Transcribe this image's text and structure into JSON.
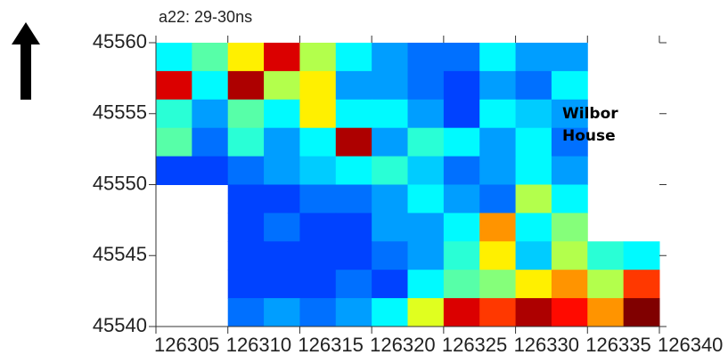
{
  "chart_data": {
    "type": "heatmap",
    "title": "a22: 29-30ns",
    "annotation": [
      "Wilbor",
      "House"
    ],
    "xlim": [
      126305,
      126340
    ],
    "ylim": [
      45540,
      45560
    ],
    "xticks": [
      126305,
      126310,
      126315,
      126320,
      126325,
      126330,
      126335,
      126340
    ],
    "yticks": [
      45540,
      45545,
      45550,
      45555,
      45560
    ],
    "xbins": [
      126305,
      126307.5,
      126310,
      126312.5,
      126315,
      126317.5,
      126320,
      126322.5,
      126325,
      126327.5,
      126330,
      126332.5,
      126335,
      126337.5,
      126340
    ],
    "ybins": [
      45560,
      45558,
      45556,
      45554,
      45552,
      45550,
      45548,
      45546,
      45544,
      45542,
      45540
    ],
    "values": [
      [
        0.3,
        0.4,
        0.6,
        0.9,
        0.5,
        0.3,
        0.2,
        0.15,
        0.15,
        0.3,
        0.2,
        0.2,
        null,
        null
      ],
      [
        0.9,
        0.3,
        0.95,
        0.5,
        0.6,
        0.2,
        0.2,
        0.15,
        0.1,
        0.2,
        0.15,
        0.3,
        null,
        null
      ],
      [
        0.35,
        0.2,
        0.4,
        0.3,
        0.6,
        0.3,
        0.3,
        0.2,
        0.1,
        0.3,
        0.25,
        0.2,
        null,
        null
      ],
      [
        0.4,
        0.15,
        0.35,
        0.2,
        0.3,
        0.95,
        0.2,
        0.35,
        0.3,
        0.2,
        0.3,
        0.15,
        null,
        null
      ],
      [
        0.1,
        0.1,
        0.15,
        0.2,
        0.25,
        0.3,
        0.35,
        0.25,
        0.15,
        0.2,
        0.3,
        0.2,
        null,
        null
      ],
      [
        null,
        null,
        0.1,
        0.1,
        0.15,
        0.15,
        0.2,
        0.3,
        0.2,
        0.15,
        0.5,
        0.3,
        null,
        null
      ],
      [
        null,
        null,
        0.1,
        0.15,
        0.1,
        0.1,
        0.2,
        0.2,
        0.3,
        0.7,
        0.3,
        0.45,
        null,
        null
      ],
      [
        null,
        null,
        0.1,
        0.1,
        0.1,
        0.1,
        0.15,
        0.2,
        0.35,
        0.6,
        0.25,
        0.5,
        0.35,
        0.3
      ],
      [
        null,
        null,
        0.1,
        0.1,
        0.1,
        0.15,
        0.1,
        0.3,
        0.4,
        0.45,
        0.6,
        0.7,
        0.5,
        0.8
      ],
      [
        null,
        null,
        0.15,
        0.2,
        0.15,
        0.2,
        0.3,
        0.55,
        0.9,
        0.8,
        0.95,
        0.85,
        0.7,
        1.0
      ]
    ]
  }
}
